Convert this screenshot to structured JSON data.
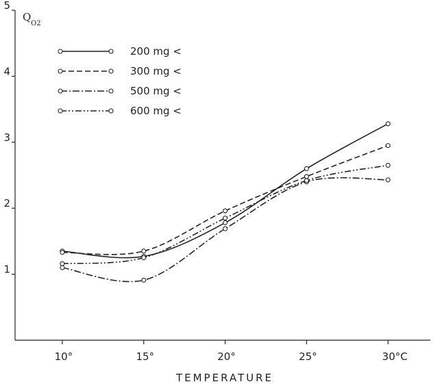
{
  "chart_data": {
    "type": "line",
    "ylabel": "Q",
    "ylabel_subscript": "O2",
    "xlabel": "TEMPERATURE",
    "x_ticks": [
      "10°",
      "15°",
      "20°",
      "25°",
      "30°C"
    ],
    "y_ticks": [
      "1",
      "2",
      "3",
      "4",
      "5"
    ],
    "x": [
      10,
      15,
      20,
      25,
      30
    ],
    "xlim": [
      7.1,
      32.6
    ],
    "ylim": [
      0,
      5
    ],
    "grid": false,
    "legend_position": "top-left",
    "series": [
      {
        "name": "200 mg <",
        "style": "solid",
        "values": [
          1.35,
          1.27,
          1.78,
          2.6,
          3.28
        ]
      },
      {
        "name": "300 mg <",
        "style": "dashed",
        "values": [
          1.33,
          1.35,
          1.96,
          2.48,
          2.95
        ]
      },
      {
        "name": "500 mg <",
        "style": "dashdot",
        "values": [
          1.1,
          0.91,
          1.69,
          2.4,
          2.43
        ]
      },
      {
        "name": "600 mg <",
        "style": "dashdotdot",
        "values": [
          1.16,
          1.25,
          1.85,
          2.42,
          2.65
        ]
      }
    ],
    "colors": {
      "ink": "#222222",
      "background": "#ffffff"
    }
  }
}
